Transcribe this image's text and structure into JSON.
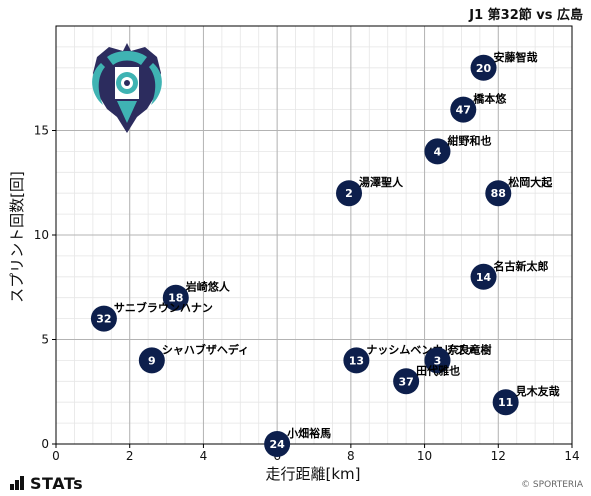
{
  "match_title": "J1 第32節 vs 広島",
  "footer": {
    "brand": "STATs",
    "credit": "© SPORTERIA"
  },
  "chart_data": {
    "type": "scatter",
    "xlabel": "走行距離[km]",
    "ylabel": "スプリント回数[回]",
    "xlim": [
      0,
      14
    ],
    "ylim": [
      0,
      20
    ],
    "x_ticks": [
      0,
      2,
      4,
      6,
      8,
      10,
      12,
      14
    ],
    "y_ticks": [
      0,
      5,
      10,
      15
    ],
    "grid": true,
    "marker_color": "#0d1f4c",
    "points": [
      {
        "number": "20",
        "name": "安藤智哉",
        "x": 11.6,
        "y": 18
      },
      {
        "number": "47",
        "name": "橋本悠",
        "x": 11.05,
        "y": 16
      },
      {
        "number": "4",
        "name": "紺野和也",
        "x": 10.35,
        "y": 14
      },
      {
        "number": "88",
        "name": "松岡大起",
        "x": 12.0,
        "y": 12
      },
      {
        "number": "2",
        "name": "湯澤聖人",
        "x": 7.95,
        "y": 12
      },
      {
        "number": "14",
        "name": "名古新太郎",
        "x": 11.6,
        "y": 8
      },
      {
        "number": "18",
        "name": "岩崎悠人",
        "x": 3.25,
        "y": 7
      },
      {
        "number": "32",
        "name": "サニブラウンハナン",
        "x": 1.3,
        "y": 6
      },
      {
        "number": "9",
        "name": "シャハブザヘディ",
        "x": 2.6,
        "y": 4
      },
      {
        "number": "13",
        "name": "ナッシムベンカリファ",
        "x": 8.15,
        "y": 4
      },
      {
        "number": "3",
        "name": "奈良竜樹",
        "x": 10.35,
        "y": 4
      },
      {
        "number": "37",
        "name": "田代雅也",
        "x": 9.5,
        "y": 3
      },
      {
        "number": "11",
        "name": "見木友哉",
        "x": 12.2,
        "y": 2
      },
      {
        "number": "24",
        "name": "小畑裕馬",
        "x": 6.0,
        "y": 0
      }
    ]
  }
}
